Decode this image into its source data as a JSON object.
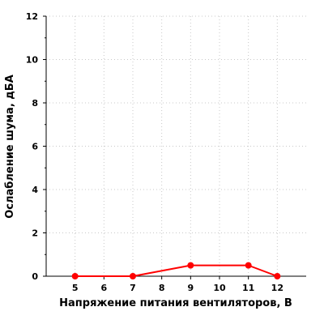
{
  "chart_data": {
    "type": "line",
    "title": "",
    "xlabel": "Напряжение питания вентиляторов, В",
    "ylabel": "Ослабление шума, дБА",
    "xlim": [
      4,
      13
    ],
    "ylim": [
      0,
      12
    ],
    "x_ticks": [
      5,
      6,
      7,
      8,
      9,
      10,
      11,
      12
    ],
    "y_ticks": [
      0,
      2,
      4,
      6,
      8,
      10,
      12
    ],
    "grid": true,
    "series": [
      {
        "x": [
          5,
          7,
          9,
          11,
          12
        ],
        "y": [
          0,
          0,
          0.5,
          0.5,
          0
        ],
        "color": "#ff0000"
      }
    ]
  }
}
